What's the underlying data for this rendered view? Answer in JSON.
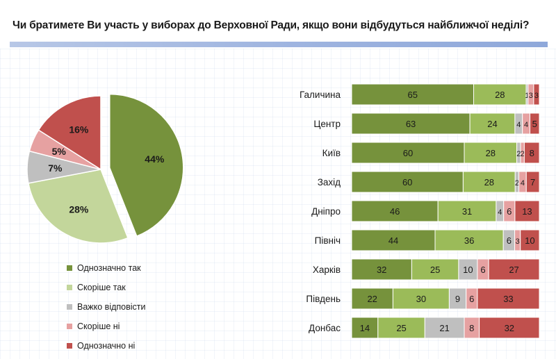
{
  "title": "Чи братимете Ви участь у виборах до Верховної Ради, якщо вони відбудуться найближчої неділі?",
  "legend": {
    "items": [
      {
        "label": "Однозначно так",
        "color": "#76923c"
      },
      {
        "label": "Скоріше так",
        "color": "#c3d69b"
      },
      {
        "label": "Важко відповісти",
        "color": "#bfbfbf"
      },
      {
        "label": "Скоріше ні",
        "color": "#e6a1a1"
      },
      {
        "label": "Однозначно ні",
        "color": "#c0504d"
      }
    ]
  },
  "chart_data": [
    {
      "type": "pie",
      "categories": [
        "Однозначно так",
        "Скоріше так",
        "Важко відповісти",
        "Скоріше ні",
        "Однозначно ні"
      ],
      "values": [
        44,
        28,
        7,
        5,
        16
      ],
      "labels": [
        "44%",
        "28%",
        "7%",
        "5%",
        "16%"
      ],
      "colors": [
        "#76923c",
        "#c3d69b",
        "#bfbfbf",
        "#e6a1a1",
        "#c0504d"
      ],
      "exploded": "Однозначно так"
    },
    {
      "type": "bar",
      "orientation": "horizontal",
      "stacked": true,
      "categories": [
        "Галичина",
        "Центр",
        "Київ",
        "Захід",
        "Дніпро",
        "Північ",
        "Харків",
        "Південь",
        "Донбас"
      ],
      "series": [
        {
          "name": "Однозначно так",
          "color": "#76923c",
          "values": [
            65,
            63,
            60,
            60,
            46,
            44,
            32,
            22,
            14
          ]
        },
        {
          "name": "Скоріше так",
          "color": "#9bbb59",
          "values": [
            28,
            24,
            28,
            28,
            31,
            36,
            25,
            30,
            25
          ]
        },
        {
          "name": "Важко відповісти",
          "color": "#bfbfbf",
          "values": [
            1,
            4,
            2,
            2,
            4,
            6,
            10,
            9,
            21
          ]
        },
        {
          "name": "Скоріше ні",
          "color": "#e6a1a1",
          "values": [
            3,
            4,
            2,
            4,
            6,
            3,
            6,
            6,
            8
          ]
        },
        {
          "name": "Однозначно ні",
          "color": "#c0504d",
          "values": [
            3,
            5,
            8,
            7,
            13,
            10,
            27,
            33,
            32
          ]
        }
      ]
    }
  ]
}
